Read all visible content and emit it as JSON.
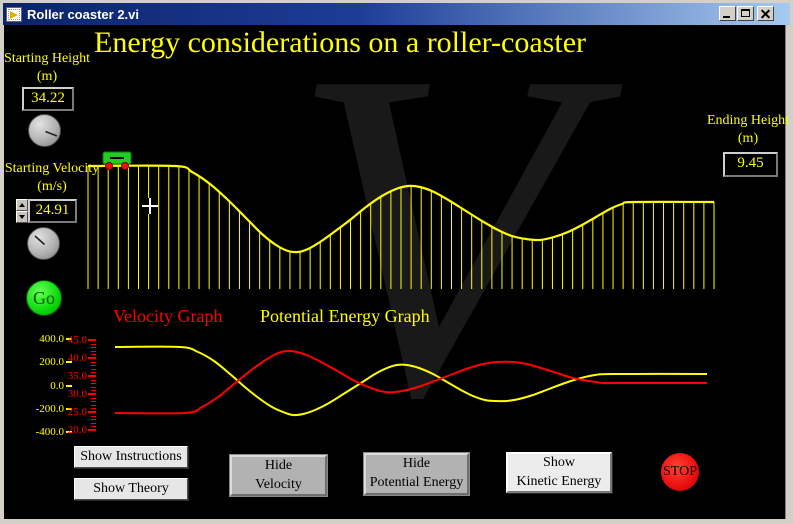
{
  "window": {
    "title": "Roller coaster 2.vi"
  },
  "header": {
    "title": "Energy considerations on a roller-coaster"
  },
  "watermark": {
    "glyph": "V"
  },
  "left_panel": {
    "starting_height_label": "Starting Height (m)",
    "starting_height_value": "34.22",
    "starting_velocity_label": "Starting Velocity (m/s)",
    "starting_velocity_value": "24.91",
    "go_label": "Go"
  },
  "right_panel": {
    "ending_height_label": "Ending Height (m)",
    "ending_height_value": "9.45"
  },
  "graph_section": {
    "velocity_label": "Velocity Graph",
    "potential_label": "Potential Energy Graph"
  },
  "footer": {
    "show_instructions": "Show Instructions",
    "show_theory": "Show Theory",
    "hide_velocity": {
      "line1": "Hide",
      "line2": "Velocity"
    },
    "hide_potential": {
      "line1": "Hide",
      "line2": "Potential Energy"
    },
    "show_kinetic": {
      "line1": "Show",
      "line2": "Kinetic Energy"
    },
    "stop_label": "STOP"
  },
  "colors": {
    "accent_yellow": "#ffff00",
    "accent_red": "#ff0000",
    "go_green": "#11dd11",
    "stop_red": "#ee1111",
    "titlebar_left": "#0a246a",
    "titlebar_right": "#a6caf0"
  },
  "chart_data": [
    {
      "type": "line",
      "name": "roller-coaster-track-profile",
      "note": "track height profile drawn with vertical support lines; coordinates are screen pixels",
      "color": "#ffff00",
      "baseline_y": 289,
      "support_count": 63,
      "car_x": 103,
      "points": [
        [
          88,
          166
        ],
        [
          175,
          166
        ],
        [
          192,
          172
        ],
        [
          210,
          184
        ],
        [
          228,
          200
        ],
        [
          246,
          218
        ],
        [
          262,
          234
        ],
        [
          276,
          245
        ],
        [
          288,
          251
        ],
        [
          298,
          252
        ],
        [
          308,
          249
        ],
        [
          320,
          242
        ],
        [
          334,
          232
        ],
        [
          350,
          220
        ],
        [
          366,
          207
        ],
        [
          382,
          196
        ],
        [
          396,
          189
        ],
        [
          408,
          186
        ],
        [
          420,
          187
        ],
        [
          434,
          192
        ],
        [
          450,
          201
        ],
        [
          466,
          211
        ],
        [
          482,
          221
        ],
        [
          498,
          230
        ],
        [
          512,
          236
        ],
        [
          526,
          239
        ],
        [
          540,
          240
        ],
        [
          554,
          237
        ],
        [
          568,
          232
        ],
        [
          582,
          225
        ],
        [
          596,
          217
        ],
        [
          610,
          209
        ],
        [
          622,
          204
        ],
        [
          634,
          202
        ],
        [
          714,
          202
        ]
      ]
    },
    {
      "type": "line",
      "name": "velocity-and-potential-energy-graph",
      "note": "dual-axis strip chart; series coordinates are screen pixels",
      "left_axis": {
        "color": "#ffff00",
        "tick_labels": [
          "400.0",
          "200.0",
          "0.0",
          "-200.0",
          "-400.0"
        ],
        "range": [
          400,
          -400
        ]
      },
      "right_axis": {
        "color": "#ff0000",
        "tick_labels": [
          "45.0",
          "40.0",
          "35.0",
          "30.0",
          "25.0",
          "20.0"
        ],
        "range": [
          45,
          20
        ]
      },
      "series": [
        {
          "name": "Potential Energy",
          "color": "#ffff00",
          "points": [
            [
              115,
              347
            ],
            [
              180,
              347
            ],
            [
              198,
              352
            ],
            [
              214,
              361
            ],
            [
              230,
              374
            ],
            [
              246,
              388
            ],
            [
              260,
              399
            ],
            [
              272,
              407
            ],
            [
              283,
              412
            ],
            [
              293,
              415
            ],
            [
              303,
              414
            ],
            [
              315,
              410
            ],
            [
              329,
              403
            ],
            [
              345,
              393
            ],
            [
              361,
              383
            ],
            [
              375,
              374
            ],
            [
              387,
              368
            ],
            [
              397,
              365
            ],
            [
              407,
              365
            ],
            [
              419,
              368
            ],
            [
              433,
              374
            ],
            [
              447,
              382
            ],
            [
              461,
              390
            ],
            [
              473,
              396
            ],
            [
              485,
              400
            ],
            [
              495,
              401
            ],
            [
              507,
              401
            ],
            [
              519,
              399
            ],
            [
              533,
              395
            ],
            [
              549,
              389
            ],
            [
              565,
              383
            ],
            [
              581,
              378
            ],
            [
              595,
              375
            ],
            [
              612,
              374
            ],
            [
              707,
              374
            ]
          ]
        },
        {
          "name": "Velocity",
          "color": "#ff0000",
          "points": [
            [
              115,
              413
            ],
            [
              185,
              413
            ],
            [
              202,
              407
            ],
            [
              218,
              397
            ],
            [
              234,
              384
            ],
            [
              250,
              371
            ],
            [
              264,
              361
            ],
            [
              276,
              354
            ],
            [
              287,
              351
            ],
            [
              297,
              352
            ],
            [
              309,
              356
            ],
            [
              323,
              363
            ],
            [
              339,
              372
            ],
            [
              355,
              381
            ],
            [
              371,
              388
            ],
            [
              385,
              392
            ],
            [
              395,
              392
            ],
            [
              407,
              390
            ],
            [
              421,
              386
            ],
            [
              437,
              380
            ],
            [
              453,
              374
            ],
            [
              469,
              368
            ],
            [
              483,
              364
            ],
            [
              497,
              362
            ],
            [
              513,
              362
            ],
            [
              527,
              364
            ],
            [
              541,
              368
            ],
            [
              557,
              373
            ],
            [
              573,
              378
            ],
            [
              589,
              381
            ],
            [
              603,
              383
            ],
            [
              617,
              383
            ],
            [
              707,
              383
            ]
          ]
        }
      ]
    }
  ]
}
